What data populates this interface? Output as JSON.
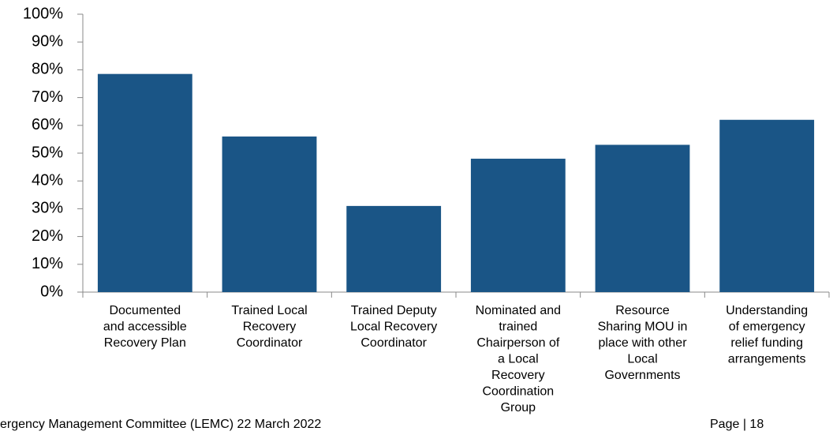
{
  "chart_data": {
    "type": "bar",
    "categories": [
      [
        "Documented",
        "and accessible",
        "Recovery Plan"
      ],
      [
        "Trained Local",
        "Recovery",
        "Coordinator"
      ],
      [
        "Trained Deputy",
        "Local Recovery",
        "Coordinator"
      ],
      [
        "Nominated and",
        "trained",
        "Chairperson of",
        "a Local",
        "Recovery",
        "Coordination",
        "Group"
      ],
      [
        "Resource",
        "Sharing MOU in",
        "place with other",
        "Local",
        "Governments"
      ],
      [
        "Understanding",
        "of emergency",
        "relief funding",
        "arrangements"
      ]
    ],
    "values": [
      78.5,
      56,
      31,
      48,
      53,
      62
    ],
    "color": "#1a5586",
    "ylim": [
      0,
      100
    ],
    "yticks": [
      {
        "value": 0,
        "label": "0%"
      },
      {
        "value": 10,
        "label": "10%"
      },
      {
        "value": 20,
        "label": "20%"
      },
      {
        "value": 30,
        "label": "30%"
      },
      {
        "value": 40,
        "label": "40%"
      },
      {
        "value": 50,
        "label": "50%"
      },
      {
        "value": 60,
        "label": "60%"
      },
      {
        "value": 70,
        "label": "70%"
      },
      {
        "value": 80,
        "label": "80%"
      },
      {
        "value": 90,
        "label": "90%"
      },
      {
        "value": 100,
        "label": "100%"
      }
    ],
    "grid": false
  },
  "footer": {
    "left": "ergency Management Committee (LEMC) 22 March 2022",
    "right": "Page | 18"
  }
}
